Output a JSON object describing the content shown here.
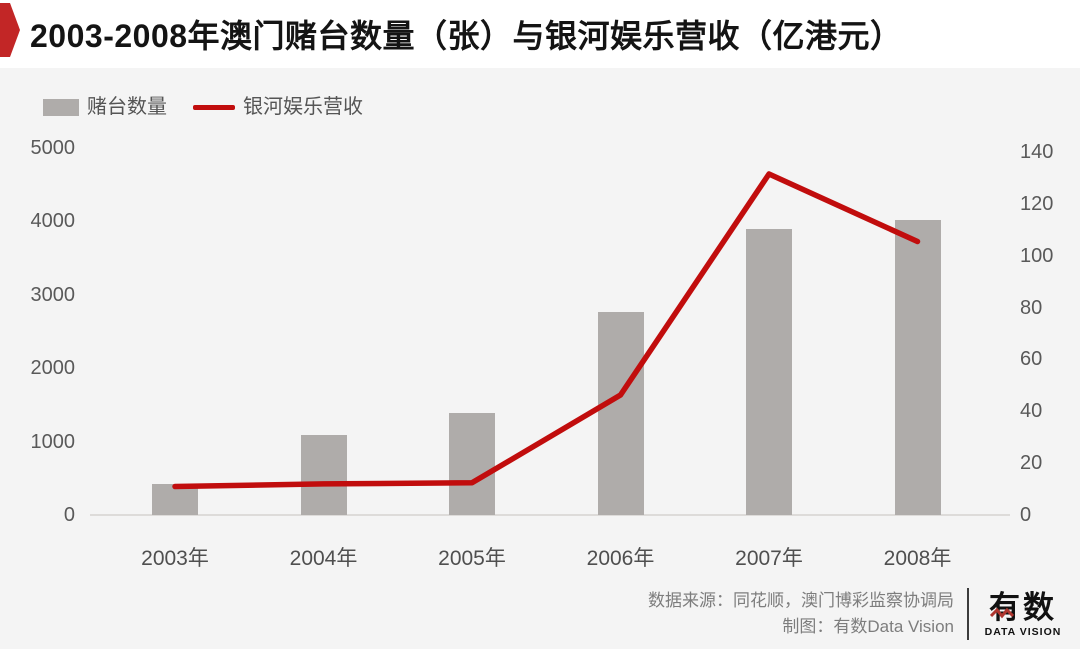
{
  "chart_data": {
    "type": "bar",
    "subtype": "dual-axis bar+line combo",
    "title": "2003-2008年澳门赌台数量（张）与银河娱乐营收（亿港元）",
    "categories": [
      "2003年",
      "2004年",
      "2005年",
      "2006年",
      "2007年",
      "2008年"
    ],
    "series": [
      {
        "name": "赌台数量",
        "kind": "bar",
        "axis": "left",
        "unit": "张",
        "color": "#afacaa",
        "values": [
          424,
          1092,
          1388,
          2762,
          3900,
          4017
        ]
      },
      {
        "name": "银河娱乐营收",
        "kind": "line",
        "axis": "right",
        "unit": "亿港元",
        "color": "#c10d0d",
        "values": [
          11,
          12,
          12.4,
          46.3,
          131.5,
          105.5
        ]
      }
    ],
    "left_axis": {
      "min": 0,
      "max": 5000,
      "ticks": [
        5000,
        4000,
        3000,
        2000,
        1000,
        0
      ]
    },
    "right_axis": {
      "min": 0,
      "max": 140,
      "ticks": [
        140,
        120,
        100,
        80,
        60,
        40,
        20,
        0
      ]
    },
    "grid": false,
    "legend_position": "top-left"
  },
  "footer": {
    "source_line": "数据来源：同花顺，澳门博彩监察协调局",
    "credit_line": "制图：有数Data Vision",
    "logo_text": "有数",
    "logo_subtext": "DATA VISION"
  },
  "colors": {
    "badge_red": "#c22626",
    "line_red": "#c10d0d",
    "bar_gray": "#afacaa",
    "logo_zigzag_red": "#ae352e",
    "page_bg": "#f4f4f4",
    "header_bg": "#ffffff"
  }
}
